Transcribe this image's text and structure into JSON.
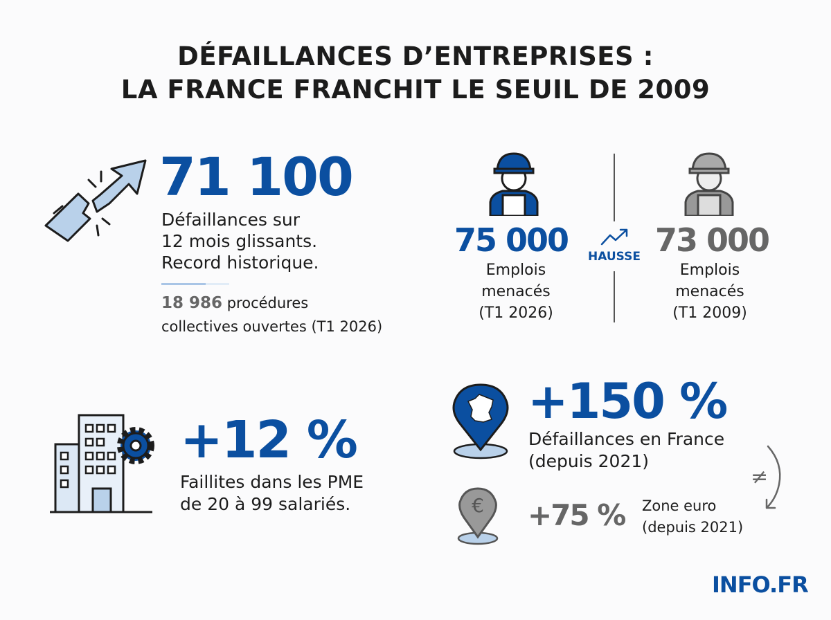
{
  "title": {
    "line1": "DÉFAILLANCES D’ENTREPRISES :",
    "line2": "LA FRANCE FRANCHIT LE SEUIL DE 2009"
  },
  "record": {
    "value": "71 100",
    "desc": [
      "Défaillances sur",
      "12 mois glissants.",
      "Record historique."
    ],
    "procedures_value": "18 986",
    "procedures_text1": "procédures",
    "procedures_text2": "collectives ouvertes (T1 2026)",
    "icon": "broken-rising-arrow-icon"
  },
  "jobs": {
    "current": {
      "value": "75 000",
      "label1": "Emplois",
      "label2": "menacés",
      "label3": "(T1 2026)",
      "icon": "worker-icon"
    },
    "trend_label": "HAUSSE",
    "past": {
      "value": "73 000",
      "label1": "Emplois",
      "label2": "menacés",
      "label3": "(T1 2009)",
      "icon": "worker-icon"
    }
  },
  "sme": {
    "value": "+12 %",
    "desc1": "Faillites dans les PME",
    "desc2": "de 20 à 99 salariés.",
    "icon": "building-gear-icon"
  },
  "france": {
    "value": "+150 %",
    "desc1": "Défaillances en France",
    "desc2": "(depuis 2021)",
    "icon": "france-map-pin-icon"
  },
  "comparison_symbol": "≠",
  "eurozone": {
    "value": "+75 %",
    "desc1": "Zone euro",
    "desc2": "(depuis 2021)",
    "icon": "euro-pin-icon"
  },
  "footer": {
    "brand": "INFO.FR"
  },
  "colors": {
    "accent": "#0b4fa0",
    "secondary": "#666666",
    "light_blue": "#b9d1ea"
  }
}
